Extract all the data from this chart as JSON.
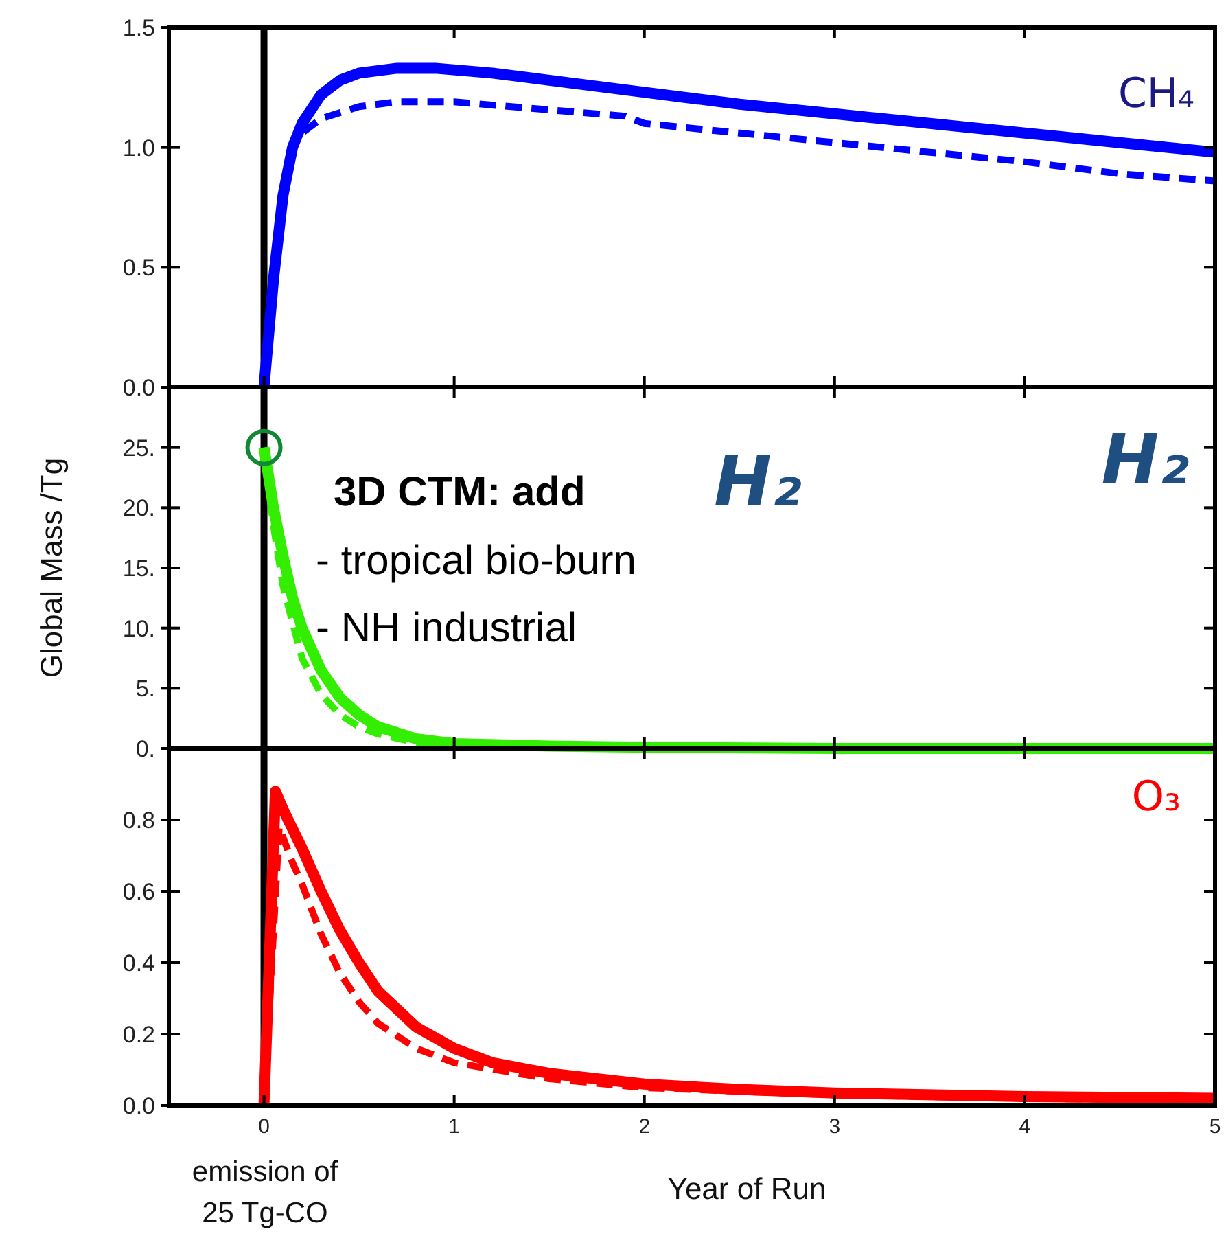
{
  "chart_data": [
    {
      "type": "line",
      "xlim": [
        -0.5,
        5
      ],
      "xticks": [
        0,
        1,
        2,
        3,
        4,
        5
      ],
      "ylim": [
        0,
        1.5
      ],
      "yticks": [
        {
          "value": 0,
          "label": "0.0"
        },
        {
          "value": 0.5,
          "label": "0.5"
        },
        {
          "value": 1,
          "label": "1.0"
        },
        {
          "value": 1.5,
          "label": "1.5"
        }
      ],
      "tick_labels": "y",
      "grid": false,
      "ref_lines": [
        {
          "axis": "x",
          "value": 0,
          "color": "#000000"
        }
      ],
      "annotations": [
        "CH₄"
      ],
      "series": [
        {
          "color": "#0000ff",
          "line_style": "solid",
          "x": [
            0,
            0.05,
            0.1,
            0.15,
            0.2,
            0.3,
            0.4,
            0.5,
            0.7,
            0.9,
            1.2,
            1.5,
            2,
            2.5,
            3,
            3.5,
            4,
            4.5,
            5
          ],
          "values": [
            0,
            0.45,
            0.8,
            1.0,
            1.1,
            1.22,
            1.28,
            1.31,
            1.33,
            1.33,
            1.31,
            1.28,
            1.23,
            1.18,
            1.14,
            1.1,
            1.06,
            1.02,
            0.98
          ]
        },
        {
          "color": "#0000ff",
          "line_style": "dashed",
          "x": [
            0,
            0.05,
            0.1,
            0.15,
            0.2,
            0.3,
            0.5,
            0.7,
            1,
            1.3,
            1.6,
            1.9,
            2,
            2.5,
            3,
            3.5,
            4,
            4.5,
            5
          ],
          "values": [
            0,
            0.45,
            0.8,
            1.0,
            1.06,
            1.12,
            1.17,
            1.19,
            1.19,
            1.17,
            1.15,
            1.13,
            1.1,
            1.06,
            1.02,
            0.98,
            0.94,
            0.89,
            0.86
          ]
        }
      ]
    },
    {
      "type": "line",
      "xlim": [
        -0.5,
        5
      ],
      "xticks": [
        0,
        1,
        2,
        3,
        4,
        5
      ],
      "ylim": [
        0,
        30
      ],
      "yticks": [
        {
          "value": 0,
          "label": "0."
        },
        {
          "value": 5,
          "label": "5."
        },
        {
          "value": 10,
          "label": "10."
        },
        {
          "value": 15,
          "label": "15."
        },
        {
          "value": 20,
          "label": "20."
        },
        {
          "value": 25,
          "label": "25."
        }
      ],
      "tick_labels": "y",
      "grid": false,
      "ylabel": "Global Mass /Tg",
      "ref_lines": [
        {
          "axis": "x",
          "value": 0,
          "color": "#000000"
        }
      ],
      "annotations": [
        "3D CTM: add",
        "H₂",
        "- tropical bio-burn",
        "- NH industrial",
        "H₂"
      ],
      "series": [
        {
          "color": "#33ee00",
          "line_style": "solid",
          "x": [
            0,
            0.05,
            0.1,
            0.15,
            0.2,
            0.3,
            0.4,
            0.5,
            0.6,
            0.8,
            1,
            1.5,
            2,
            3,
            5
          ],
          "values": [
            25,
            20,
            16,
            12.5,
            10,
            6.5,
            4.2,
            2.8,
            1.8,
            0.8,
            0.4,
            0.2,
            0.1,
            0,
            0
          ]
        },
        {
          "color": "#33ee00",
          "line_style": "dashed",
          "x": [
            0,
            0.05,
            0.1,
            0.2,
            0.3,
            0.4,
            0.5,
            0.6,
            0.8,
            1
          ],
          "values": [
            25,
            18.5,
            13.5,
            7.5,
            4.5,
            2.8,
            1.8,
            1.2,
            0.5,
            0.2
          ]
        },
        {
          "type": "scatter",
          "color": "#118833",
          "marker": "circle",
          "x": [
            0
          ],
          "values": [
            25
          ]
        }
      ]
    },
    {
      "type": "line",
      "xlim": [
        -0.5,
        5
      ],
      "xticks": [
        0,
        1,
        2,
        3,
        4,
        5
      ],
      "ylim": [
        0,
        1
      ],
      "yticks": [
        {
          "value": 0,
          "label": "0.0"
        },
        {
          "value": 0.2,
          "label": "0.2"
        },
        {
          "value": 0.4,
          "label": "0.4"
        },
        {
          "value": 0.6,
          "label": "0.6"
        },
        {
          "value": 0.8,
          "label": "0.8"
        },
        {
          "value": 1,
          "label": null
        }
      ],
      "grid": false,
      "xlabel": "Year of Run",
      "ref_lines": [
        {
          "axis": "x",
          "value": 0,
          "color": "#000000"
        }
      ],
      "annotations": [
        "O₃",
        "emission of",
        "25 Tg-CO"
      ],
      "series": [
        {
          "color": "#ff0000",
          "line_style": "solid",
          "x": [
            0,
            0.06,
            0.1,
            0.2,
            0.3,
            0.4,
            0.5,
            0.6,
            0.8,
            1,
            1.2,
            1.5,
            2,
            2.5,
            3,
            4,
            5
          ],
          "values": [
            0,
            0.88,
            0.83,
            0.72,
            0.6,
            0.49,
            0.4,
            0.32,
            0.22,
            0.16,
            0.12,
            0.09,
            0.06,
            0.045,
            0.035,
            0.025,
            0.02
          ]
        },
        {
          "color": "#ff0000",
          "line_style": "dashed",
          "x": [
            0,
            0.08,
            0.15,
            0.2,
            0.3,
            0.4,
            0.5,
            0.6,
            0.8,
            1,
            1.5,
            2,
            3,
            4,
            5
          ],
          "values": [
            0,
            0.78,
            0.68,
            0.62,
            0.48,
            0.37,
            0.29,
            0.23,
            0.16,
            0.12,
            0.075,
            0.05,
            0.03,
            0.02,
            0.015
          ]
        }
      ]
    }
  ]
}
